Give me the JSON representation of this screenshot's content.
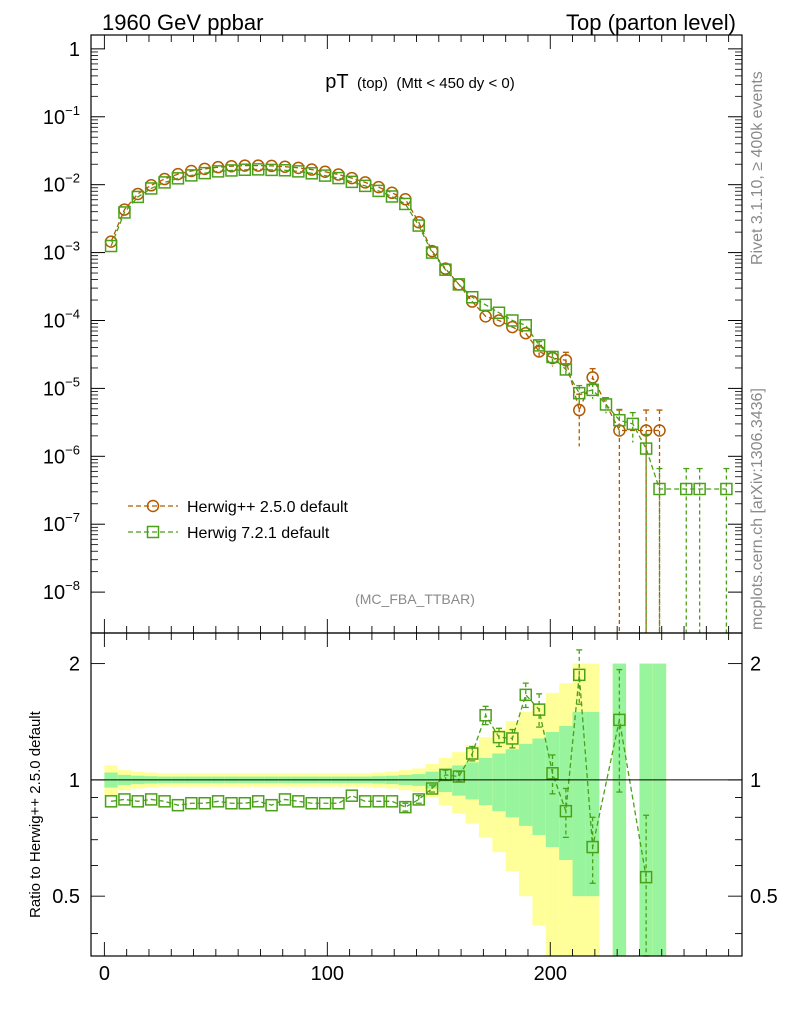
{
  "header": {
    "left": "1960 GeV ppbar",
    "right": "Top (parton level)"
  },
  "side_text": {
    "rivet": "Rivet 3.1.10, ≥ 400k events",
    "mcplots": "mcplots.cern.ch [arXiv:1306.3436]"
  },
  "chart_data": [
    {
      "type": "line",
      "panel": "main",
      "title_main": "pT",
      "title_sub": "(top)",
      "title_cut": "(Mtt < 450 dy < 0)",
      "analysis_id": "(MC_FBA_TTBAR)",
      "yscale": "log",
      "ylim": [
        2.5e-09,
        1.6
      ],
      "xlim": [
        -6,
        286
      ],
      "ytick_labels": [
        {
          "value": 1,
          "base": "1",
          "exp": ""
        },
        {
          "value": 0.1,
          "base": "10",
          "exp": "−1"
        },
        {
          "value": 0.01,
          "base": "10",
          "exp": "−2"
        },
        {
          "value": 0.001,
          "base": "10",
          "exp": "−3"
        },
        {
          "value": 0.0001,
          "base": "10",
          "exp": "−4"
        },
        {
          "value": 1e-05,
          "base": "10",
          "exp": "−5"
        },
        {
          "value": 1e-06,
          "base": "10",
          "exp": "−6"
        },
        {
          "value": 1e-07,
          "base": "10",
          "exp": "−7"
        },
        {
          "value": 1e-08,
          "base": "10",
          "exp": "−8"
        }
      ],
      "x": [
        3,
        9,
        15,
        21,
        27,
        33,
        39,
        45,
        51,
        57,
        63,
        69,
        75,
        81,
        87,
        93,
        99,
        105,
        111,
        117,
        123,
        129,
        135,
        141,
        147,
        153,
        159,
        165,
        171,
        177,
        183,
        189,
        195,
        201,
        207,
        213,
        219,
        225,
        231,
        237,
        243,
        249,
        255,
        261,
        267,
        273,
        279
      ],
      "series": [
        {
          "name": "Herwig++ 2.5.0 default",
          "color": "#b35a00",
          "marker": "circle",
          "values": [
            0.00145,
            0.0043,
            0.0073,
            0.0098,
            0.0121,
            0.0143,
            0.0159,
            0.0171,
            0.0181,
            0.0187,
            0.0191,
            0.0191,
            0.0189,
            0.0184,
            0.0177,
            0.0167,
            0.0155,
            0.0141,
            0.0125,
            0.0108,
            0.0092,
            0.0076,
            0.0061,
            0.0028,
            0.00105,
            0.00058,
            0.00034,
            0.00019,
            0.000115,
            0.0001,
            8e-05,
            6.5e-05,
            3.5e-05,
            2.8e-05,
            2.6e-05,
            4.8e-06,
            1.45e-05,
            null,
            2.4e-06,
            null,
            2.4e-06,
            2.4e-06,
            null,
            null,
            null,
            null,
            null
          ],
          "err_low": [
            0,
            0,
            0,
            0,
            0,
            0,
            0,
            0,
            0,
            0,
            0,
            0,
            0,
            0,
            0,
            0,
            0,
            0,
            0,
            0,
            0,
            0,
            0,
            0,
            0,
            0,
            0,
            0,
            0,
            0,
            0,
            0,
            8e-06,
            7e-06,
            8e-06,
            3.4e-06,
            5e-06,
            null,
            2.4e-06,
            null,
            2.4e-06,
            2.4e-06,
            null,
            null,
            null,
            null,
            null
          ],
          "err_high": [
            0,
            0,
            0,
            0,
            0,
            0,
            0,
            0,
            0,
            0,
            0,
            0,
            0,
            0,
            0,
            0,
            0,
            0,
            0,
            0,
            0,
            0,
            0,
            0,
            0,
            0,
            0,
            0,
            0,
            0,
            0,
            0,
            8e-06,
            7e-06,
            8e-06,
            3.4e-06,
            5e-06,
            null,
            2.4e-06,
            null,
            2.4e-06,
            2.4e-06,
            null,
            null,
            null,
            null,
            null
          ]
        },
        {
          "name": "Herwig 7.2.1 default",
          "color": "#4aa018",
          "marker": "square",
          "values": [
            0.00125,
            0.0039,
            0.0066,
            0.0088,
            0.0108,
            0.0124,
            0.0137,
            0.0148,
            0.0157,
            0.0162,
            0.0166,
            0.0168,
            0.0165,
            0.0163,
            0.0157,
            0.0147,
            0.0136,
            0.0125,
            0.011,
            0.0096,
            0.0081,
            0.0067,
            0.0052,
            0.0025,
            0.001,
            0.00056,
            0.00034,
            0.00022,
            0.00017,
            0.00013,
            0.0001,
            8.5e-05,
            4.3e-05,
            2.9e-05,
            1.9e-05,
            8.5e-06,
            9.5e-06,
            5.8e-06,
            3.4e-06,
            3e-06,
            1.3e-06,
            3.3e-07,
            null,
            3.3e-07,
            3.3e-07,
            null,
            3.3e-07
          ],
          "err_low": [
            0,
            0,
            0,
            0,
            0,
            0,
            0,
            0,
            0,
            0,
            0,
            0,
            0,
            0,
            0,
            0,
            0,
            0,
            0,
            0,
            0,
            0,
            0,
            0,
            0,
            0,
            0,
            0,
            0,
            0,
            0,
            0,
            6e-06,
            5e-06,
            4e-06,
            2.5e-06,
            2.5e-06,
            1.5e-06,
            1.5e-06,
            1.4e-06,
            1.3e-06,
            3.3e-07,
            null,
            3.3e-07,
            3.3e-07,
            null,
            3.3e-07
          ],
          "err_high": [
            0,
            0,
            0,
            0,
            0,
            0,
            0,
            0,
            0,
            0,
            0,
            0,
            0,
            0,
            0,
            0,
            0,
            0,
            0,
            0,
            0,
            0,
            0,
            0,
            0,
            0,
            0,
            0,
            0,
            0,
            0,
            0,
            6e-06,
            5e-06,
            4e-06,
            2.5e-06,
            2.5e-06,
            1.5e-06,
            1.5e-06,
            1.4e-06,
            8e-07,
            3.3e-07,
            null,
            3.3e-07,
            3.3e-07,
            null,
            3.3e-07
          ]
        }
      ]
    },
    {
      "type": "line",
      "panel": "ratio",
      "ylabel": "Ratio to Herwig++ 2.5.0 default",
      "yscale": "log",
      "ylim": [
        0.35,
        2.4
      ],
      "xlim": [
        -6,
        286
      ],
      "ytick_labels": [
        "0.5",
        "1",
        "2"
      ],
      "ytick_values": [
        0.5,
        1,
        2
      ],
      "xtick_labels": [
        "0",
        "100",
        "200"
      ],
      "xtick_values": [
        0,
        100,
        200
      ],
      "reference_line": 1,
      "band_x_edges": [
        0,
        6,
        12,
        18,
        24,
        30,
        36,
        42,
        48,
        54,
        60,
        66,
        72,
        78,
        84,
        90,
        96,
        102,
        108,
        114,
        120,
        126,
        132,
        138,
        144,
        150,
        156,
        162,
        168,
        174,
        180,
        186,
        192,
        198,
        204,
        210,
        216,
        222,
        228,
        234,
        240,
        246,
        252
      ],
      "band_stat": [
        0.045,
        0.03,
        0.025,
        0.022,
        0.02,
        0.02,
        0.02,
        0.02,
        0.02,
        0.02,
        0.02,
        0.02,
        0.02,
        0.02,
        0.02,
        0.02,
        0.02,
        0.02,
        0.02,
        0.02,
        0.022,
        0.025,
        0.03,
        0.035,
        0.05,
        0.07,
        0.09,
        0.11,
        0.14,
        0.17,
        0.2,
        0.24,
        0.28,
        0.33,
        0.38,
        0.5,
        0.5,
        0.45,
        1.0,
        1.0,
        1.0,
        1.0
      ],
      "band_syst": [
        0.09,
        0.06,
        0.05,
        0.045,
        0.04,
        0.04,
        0.04,
        0.04,
        0.04,
        0.04,
        0.04,
        0.04,
        0.04,
        0.04,
        0.04,
        0.04,
        0.04,
        0.04,
        0.04,
        0.04,
        0.045,
        0.05,
        0.06,
        0.07,
        0.1,
        0.14,
        0.18,
        0.23,
        0.29,
        0.35,
        0.42,
        0.5,
        0.58,
        0.68,
        0.78,
        1.0,
        1.0,
        0.9,
        1.0,
        1.0,
        1.0,
        1.0
      ],
      "band_gaps": [
        [
          222,
          228
        ],
        [
          234,
          240
        ]
      ],
      "series": [
        {
          "name": "Herwig 7.2.1 default",
          "color": "#4aa018",
          "x": [
            3,
            9,
            15,
            21,
            27,
            33,
            39,
            45,
            51,
            57,
            63,
            69,
            75,
            81,
            87,
            93,
            99,
            105,
            111,
            117,
            123,
            129,
            135,
            141,
            147,
            153,
            159,
            165,
            171,
            177,
            183,
            189,
            195,
            201,
            207,
            213,
            219,
            231,
            243
          ],
          "values": [
            0.88,
            0.89,
            0.88,
            0.89,
            0.88,
            0.86,
            0.87,
            0.87,
            0.88,
            0.87,
            0.87,
            0.88,
            0.86,
            0.89,
            0.88,
            0.87,
            0.87,
            0.87,
            0.91,
            0.88,
            0.88,
            0.88,
            0.85,
            0.89,
            0.95,
            1.03,
            1.02,
            1.17,
            1.47,
            1.29,
            1.28,
            1.66,
            1.52,
            1.04,
            0.83,
            1.87,
            0.67,
            1.43,
            0.56
          ],
          "err": [
            0.01,
            0.01,
            0.01,
            0.01,
            0.01,
            0.01,
            0.01,
            0.01,
            0.01,
            0.01,
            0.01,
            0.01,
            0.01,
            0.01,
            0.01,
            0.01,
            0.01,
            0.01,
            0.01,
            0.01,
            0.01,
            0.01,
            0.02,
            0.02,
            0.02,
            0.03,
            0.03,
            0.05,
            0.08,
            0.07,
            0.07,
            0.12,
            0.15,
            0.12,
            0.12,
            0.3,
            0.13,
            0.5,
            0.25
          ]
        }
      ]
    }
  ],
  "colors": {
    "herwig_old": "#b35a00",
    "herwig_new": "#4aa018",
    "band_stat": "#99f59d",
    "band_syst": "#ffff99",
    "side_text": "#8a8a8a"
  }
}
